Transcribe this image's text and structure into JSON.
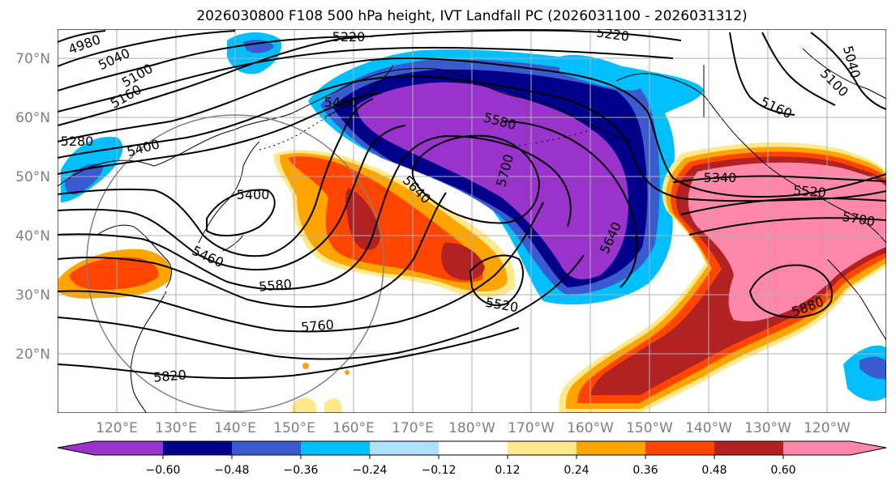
{
  "title": "2026030800 F108 500 hPa height, IVT Landfall PC (2026031100 - 2026031312)",
  "lat_labels": [
    "70°N",
    "60°N",
    "50°N",
    "40°N",
    "30°N",
    "20°N"
  ],
  "lon_labels": [
    "120°E",
    "130°E",
    "140°E",
    "150°E",
    "160°E",
    "170°E",
    "180°W",
    "170°W",
    "160°W",
    "150°W",
    "140°W",
    "130°W",
    "120°W"
  ],
  "contour_labels": [
    "4980",
    "5040",
    "5100",
    "5160",
    "5220",
    "5220",
    "5280",
    "5400",
    "5460",
    "5400",
    "5460",
    "5580",
    "5580",
    "5640",
    "5700",
    "5640",
    "5520",
    "5760",
    "5820",
    "5340",
    "5520",
    "5700",
    "5880",
    "5040",
    "5100",
    "5160"
  ],
  "colorbar": {
    "colors": [
      "#9933cc",
      "#00008b",
      "#3a5bcf",
      "#00bfff",
      "#b0e0ff",
      "#ffffff",
      "#ffe98c",
      "#ffa500",
      "#ff4500",
      "#b22222",
      "#ff88aa"
    ],
    "tick_labels": [
      "−0.60",
      "−0.48",
      "−0.36",
      "−0.24",
      "−0.12",
      "0.12",
      "0.24",
      "0.36",
      "0.48",
      "0.60"
    ]
  }
}
